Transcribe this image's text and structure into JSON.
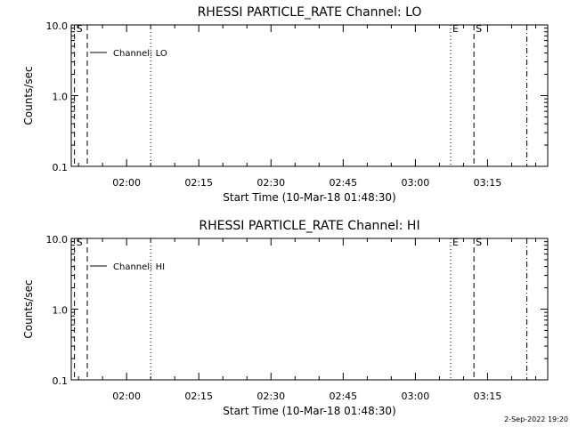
{
  "footer_date": "2-Sep-2022 19:20",
  "chart_data": [
    {
      "type": "line",
      "title": "RHESSI PARTICLE_RATE Channel: LO",
      "xlabel": "Start Time (10-Mar-18 01:48:30)",
      "ylabel": "Counts/sec",
      "y_scale": "log",
      "ylim": [
        0.1,
        10.0
      ],
      "y_ticks": [
        {
          "value": 10.0,
          "label": "10.0"
        },
        {
          "value": 1.0,
          "label": "1.0"
        },
        {
          "value": 0.1,
          "label": "0.1"
        }
      ],
      "xlim": [
        "01:48:30",
        "03:27:30"
      ],
      "x_ticks": [
        {
          "value": "02:00",
          "label": "02:00"
        },
        {
          "value": "02:15",
          "label": "02:15"
        },
        {
          "value": "02:30",
          "label": "02:30"
        },
        {
          "value": "02:45",
          "label": "02:45"
        },
        {
          "value": "03:00",
          "label": "03:00"
        },
        {
          "value": "03:15",
          "label": "03:15"
        }
      ],
      "series": [
        {
          "name": "Channel: LO",
          "x": [],
          "values": []
        }
      ],
      "markers": [
        {
          "time": "01:49:10",
          "style": "dashed",
          "label": "S"
        },
        {
          "time": "01:51:50",
          "style": "dashed",
          "label": ""
        },
        {
          "time": "02:05:00",
          "style": "dotted",
          "label": ""
        },
        {
          "time": "03:07:20",
          "style": "dotted",
          "label": "E"
        },
        {
          "time": "03:12:10",
          "style": "dashed",
          "label": "S"
        },
        {
          "time": "03:23:10",
          "style": "dashdot",
          "label": ""
        }
      ]
    },
    {
      "type": "line",
      "title": "RHESSI PARTICLE_RATE Channel: HI",
      "xlabel": "Start Time (10-Mar-18 01:48:30)",
      "ylabel": "Counts/sec",
      "y_scale": "log",
      "ylim": [
        0.1,
        10.0
      ],
      "y_ticks": [
        {
          "value": 10.0,
          "label": "10.0"
        },
        {
          "value": 1.0,
          "label": "1.0"
        },
        {
          "value": 0.1,
          "label": "0.1"
        }
      ],
      "xlim": [
        "01:48:30",
        "03:27:30"
      ],
      "x_ticks": [
        {
          "value": "02:00",
          "label": "02:00"
        },
        {
          "value": "02:15",
          "label": "02:15"
        },
        {
          "value": "02:30",
          "label": "02:30"
        },
        {
          "value": "02:45",
          "label": "02:45"
        },
        {
          "value": "03:00",
          "label": "03:00"
        },
        {
          "value": "03:15",
          "label": "03:15"
        }
      ],
      "series": [
        {
          "name": "Channel: HI",
          "x": [],
          "values": []
        }
      ],
      "markers": [
        {
          "time": "01:49:10",
          "style": "dashed",
          "label": "S"
        },
        {
          "time": "01:51:50",
          "style": "dashed",
          "label": ""
        },
        {
          "time": "02:05:00",
          "style": "dotted",
          "label": ""
        },
        {
          "time": "03:07:20",
          "style": "dotted",
          "label": "E"
        },
        {
          "time": "03:12:10",
          "style": "dashed",
          "label": "S"
        },
        {
          "time": "03:23:10",
          "style": "dashdot",
          "label": ""
        }
      ]
    }
  ]
}
